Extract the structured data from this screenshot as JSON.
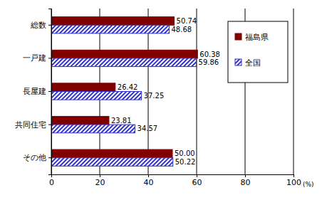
{
  "chart_data": {
    "type": "bar",
    "orientation": "horizontal",
    "categories": [
      "総数",
      "一戸建",
      "長屋建",
      "共同住宅",
      "その他"
    ],
    "series": [
      {
        "name": "福島県",
        "color": "#800000",
        "values": [
          50.74,
          60.38,
          26.42,
          23.81,
          50.0
        ],
        "value_labels": [
          "50.74",
          "60.38",
          "26.42",
          "23.81",
          "50.00"
        ]
      },
      {
        "name": "全国",
        "color": "#3333cc",
        "values": [
          48.68,
          59.86,
          37.25,
          34.57,
          50.22
        ],
        "value_labels": [
          "48.68",
          "59.86",
          "37.25",
          "34.57",
          "50.22"
        ]
      }
    ],
    "xlim": [
      0,
      100
    ],
    "xticks": [
      0,
      20,
      40,
      60,
      80,
      100
    ],
    "x_label": "(%)",
    "grid": true,
    "legend": "upper right",
    "data_labels": true
  }
}
